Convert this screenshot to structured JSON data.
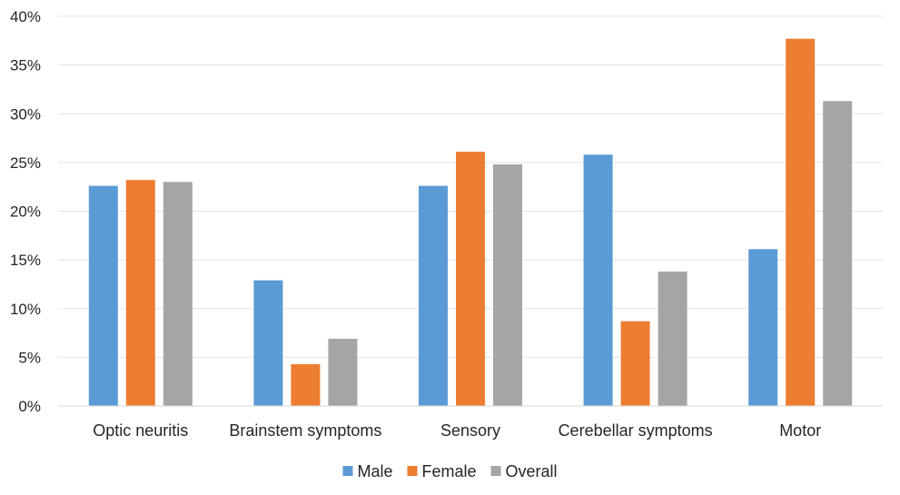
{
  "chart_data": {
    "type": "bar",
    "title": "",
    "xlabel": "",
    "ylabel": "",
    "categories": [
      "Optic neuritis",
      "Brainstem symptoms",
      "Sensory",
      "Cerebellar symptoms",
      "Motor"
    ],
    "series": [
      {
        "name": "Male",
        "color": "#5B9BD5",
        "values": [
          22.6,
          12.9,
          22.6,
          25.8,
          16.1
        ]
      },
      {
        "name": "Female",
        "color": "#ED7D31",
        "values": [
          23.2,
          4.3,
          26.1,
          8.7,
          37.7
        ]
      },
      {
        "name": "Overall",
        "color": "#A5A5A5",
        "values": [
          23.0,
          6.9,
          24.8,
          13.8,
          31.3
        ]
      }
    ],
    "ylim": [
      0,
      40
    ],
    "yticks": [
      "0%",
      "5%",
      "10%",
      "15%",
      "20%",
      "25%",
      "30%",
      "35%",
      "40%"
    ],
    "ytick_values": [
      0,
      5,
      10,
      15,
      20,
      25,
      30,
      35,
      40
    ],
    "grid": true,
    "legend_position": "bottom-center"
  }
}
